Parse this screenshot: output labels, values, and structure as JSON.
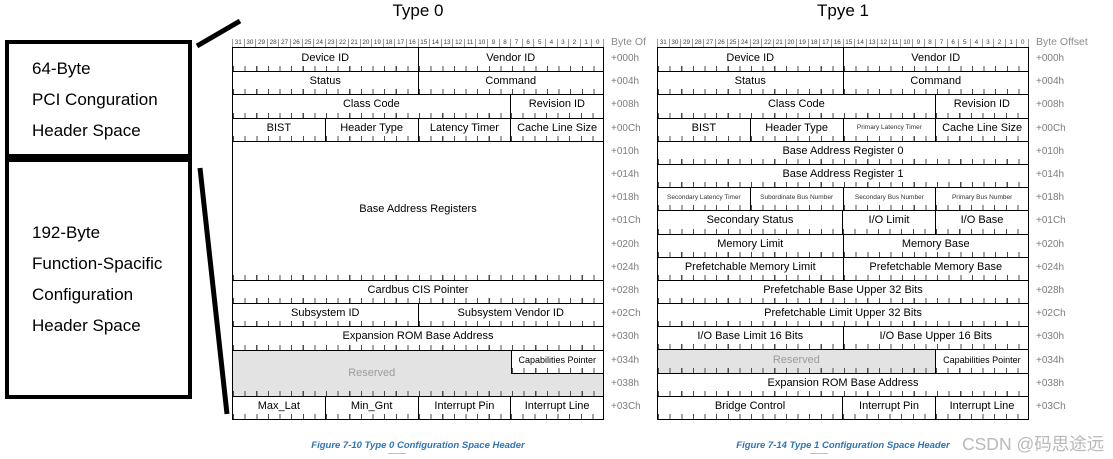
{
  "titles": {
    "type0": "Type 0",
    "type1": "Tpye 1"
  },
  "left_annotations": {
    "box1_lines": [
      "64-Byte",
      "PCI Conguration",
      "Header Space"
    ],
    "box2_lines": [
      "192-Byte",
      "Function-Spacific",
      "Configuration",
      "Header Space"
    ]
  },
  "bit_ruler": [
    "31",
    "30",
    "29",
    "28",
    "27",
    "26",
    "25",
    "24",
    "23",
    "22",
    "21",
    "20",
    "19",
    "18",
    "17",
    "16",
    "15",
    "14",
    "13",
    "12",
    "11",
    "10",
    "9",
    "8",
    "7",
    "6",
    "5",
    "4",
    "3",
    "2",
    "1",
    "0"
  ],
  "byte_offsets": [
    "+000h",
    "+004h",
    "+008h",
    "+00Ch",
    "+010h",
    "+014h",
    "+018h",
    "+01Ch",
    "+020h",
    "+024h",
    "+028h",
    "+02Ch",
    "+030h",
    "+034h",
    "+038h",
    "+03Ch"
  ],
  "tables": {
    "type0": {
      "offset_header": "Byte Of",
      "rows": [
        {
          "h": 1,
          "cells": [
            {
              "label": "Device ID",
              "bits": 16
            },
            {
              "label": "Vendor ID",
              "bits": 16
            }
          ]
        },
        {
          "h": 1,
          "cells": [
            {
              "label": "Status",
              "bits": 16
            },
            {
              "label": "Command",
              "bits": 16
            }
          ]
        },
        {
          "h": 1,
          "cells": [
            {
              "label": "Class Code",
              "bits": 24
            },
            {
              "label": "Revision ID",
              "bits": 8
            }
          ]
        },
        {
          "h": 1,
          "cells": [
            {
              "label": "BIST",
              "bits": 8
            },
            {
              "label": "Header Type",
              "bits": 8
            },
            {
              "label": "Latency Timer",
              "bits": 8
            },
            {
              "label": "Cache Line Size",
              "bits": 8
            }
          ]
        },
        {
          "h": 6,
          "cells": [
            {
              "label": "Base Address Registers",
              "bits": 32
            }
          ]
        },
        {
          "h": 1,
          "cells": [
            {
              "label": "Cardbus CIS Pointer",
              "bits": 32
            }
          ]
        },
        {
          "h": 1,
          "cells": [
            {
              "label": "Subsystem ID",
              "bits": 16
            },
            {
              "label": "Subsystem Vendor ID",
              "bits": 16
            }
          ]
        },
        {
          "h": 1,
          "cells": [
            {
              "label": "Expansion ROM Base Address",
              "bits": 32
            }
          ]
        },
        {
          "h": 2,
          "type": "reserved-block",
          "reserved_label": "Reserved",
          "overlay_label": "Capabilities Pointer",
          "overlay_bits": 8
        },
        {
          "h": 1,
          "cells": [
            {
              "label": "Max_Lat",
              "bits": 8
            },
            {
              "label": "Min_Gnt",
              "bits": 8
            },
            {
              "label": "Interrupt Pin",
              "bits": 8
            },
            {
              "label": "Interrupt Line",
              "bits": 8
            }
          ]
        }
      ]
    },
    "type1": {
      "offset_header": "Byte Offset",
      "rows": [
        {
          "h": 1,
          "cells": [
            {
              "label": "Device ID",
              "bits": 16
            },
            {
              "label": "Vendor ID",
              "bits": 16
            }
          ]
        },
        {
          "h": 1,
          "cells": [
            {
              "label": "Status",
              "bits": 16
            },
            {
              "label": "Command",
              "bits": 16
            }
          ]
        },
        {
          "h": 1,
          "cells": [
            {
              "label": "Class Code",
              "bits": 24
            },
            {
              "label": "Revision ID",
              "bits": 8
            }
          ]
        },
        {
          "h": 1,
          "cells": [
            {
              "label": "BIST",
              "bits": 8
            },
            {
              "label": "Header Type",
              "bits": 8
            },
            {
              "label": "Primary Latency Timer",
              "bits": 8,
              "small": true
            },
            {
              "label": "Cache Line Size",
              "bits": 8
            }
          ]
        },
        {
          "h": 1,
          "cells": [
            {
              "label": "Base Address Register 0",
              "bits": 32
            }
          ]
        },
        {
          "h": 1,
          "cells": [
            {
              "label": "Base Address Register 1",
              "bits": 32
            }
          ]
        },
        {
          "h": 1,
          "cells": [
            {
              "label": "Secondary Latency Timer",
              "bits": 8,
              "small": true
            },
            {
              "label": "Subordinate Bus Number",
              "bits": 8,
              "small": true
            },
            {
              "label": "Secondary Bus Number",
              "bits": 8,
              "small": true
            },
            {
              "label": "Primary Bus Number",
              "bits": 8,
              "small": true
            }
          ]
        },
        {
          "h": 1,
          "cells": [
            {
              "label": "Secondary Status",
              "bits": 16
            },
            {
              "label": "I/O Limit",
              "bits": 8
            },
            {
              "label": "I/O Base",
              "bits": 8
            }
          ]
        },
        {
          "h": 1,
          "cells": [
            {
              "label": "Memory Limit",
              "bits": 16
            },
            {
              "label": "Memory Base",
              "bits": 16
            }
          ]
        },
        {
          "h": 1,
          "cells": [
            {
              "label": "Prefetchable Memory Limit",
              "bits": 16
            },
            {
              "label": "Prefetchable Memory Base",
              "bits": 16
            }
          ]
        },
        {
          "h": 1,
          "cells": [
            {
              "label": "Prefetchable Base Upper 32 Bits",
              "bits": 32
            }
          ]
        },
        {
          "h": 1,
          "cells": [
            {
              "label": "Prefetchable Limit Upper 32 Bits",
              "bits": 32
            }
          ]
        },
        {
          "h": 1,
          "cells": [
            {
              "label": "I/O Base Limit 16 Bits",
              "bits": 16
            },
            {
              "label": "I/O Base Upper 16 Bits",
              "bits": 16
            }
          ]
        },
        {
          "h": 1,
          "cells": [
            {
              "label": "Reserved",
              "bits": 24,
              "reserved": true
            },
            {
              "label": "Capabilities Pointer",
              "bits": 8
            }
          ]
        },
        {
          "h": 1,
          "cells": [
            {
              "label": "Expansion ROM Base Address",
              "bits": 32
            }
          ]
        },
        {
          "h": 1,
          "cells": [
            {
              "label": "Bridge Control",
              "bits": 16
            },
            {
              "label": "Interrupt Pin",
              "bits": 8
            },
            {
              "label": "Interrupt Line",
              "bits": 8
            }
          ]
        }
      ]
    }
  },
  "captions": {
    "type0": "Figure 7-10 Type 0 Configuration Space Header",
    "type1": "Figure 7-14 Type 1 Configuration Space Header"
  },
  "watermark": "CSDN @码思途远",
  "colors": {
    "reserved_fill": "#e3e3e3",
    "reserved_text": "#9b9b9b",
    "caption_blue": "#2e74b5",
    "watermark_gray": "#b9b9b9",
    "offset_gray": "#7d7d7d",
    "border_black": "#000000"
  }
}
